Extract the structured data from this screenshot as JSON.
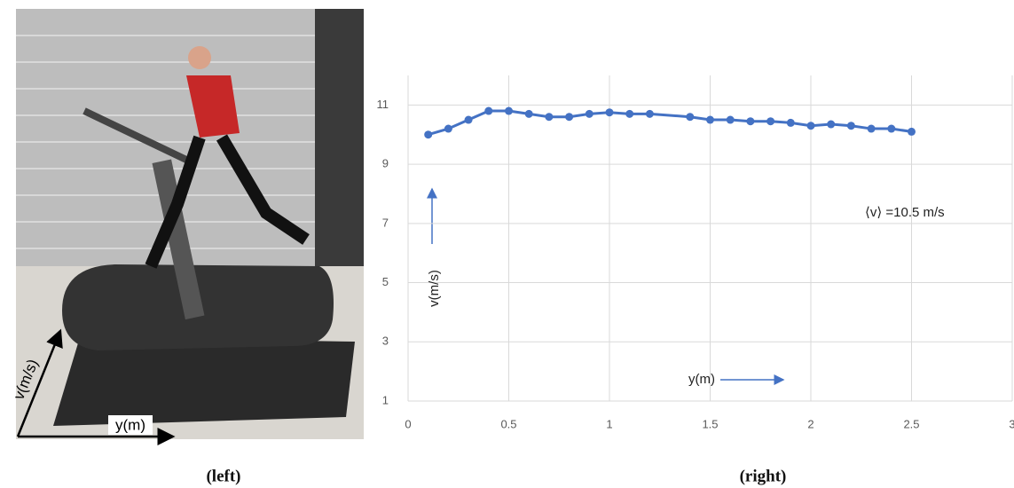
{
  "figure": {
    "left": {
      "caption": "(left)",
      "axis_v": "v(m/s)",
      "axis_y": "y(m)"
    },
    "right": {
      "caption": "(right)"
    }
  },
  "chart_data": {
    "type": "line",
    "x": [
      0.1,
      0.2,
      0.3,
      0.4,
      0.5,
      0.6,
      0.7,
      0.8,
      0.9,
      1.0,
      1.1,
      1.2,
      1.4,
      1.5,
      1.6,
      1.7,
      1.8,
      1.9,
      2.0,
      2.1,
      2.2,
      2.3,
      2.4,
      2.5
    ],
    "series": [
      {
        "color": "#4472c4",
        "values": [
          10.0,
          10.2,
          10.5,
          10.8,
          10.8,
          10.7,
          10.6,
          10.6,
          10.7,
          10.75,
          10.7,
          10.7,
          10.6,
          10.5,
          10.5,
          10.45,
          10.45,
          10.4,
          10.3,
          10.35,
          10.3,
          10.2,
          10.2,
          10.1
        ]
      }
    ],
    "xlim": [
      0,
      3
    ],
    "xticks": [
      0,
      0.5,
      1,
      1.5,
      2,
      2.5,
      3
    ],
    "ylim": [
      1,
      12
    ],
    "yticks": [
      1,
      3,
      5,
      7,
      9,
      11
    ],
    "grid": true,
    "annotations": [
      "⟨v⟩ =10.5 m/s",
      "v(m/s)",
      "y(m)"
    ]
  }
}
